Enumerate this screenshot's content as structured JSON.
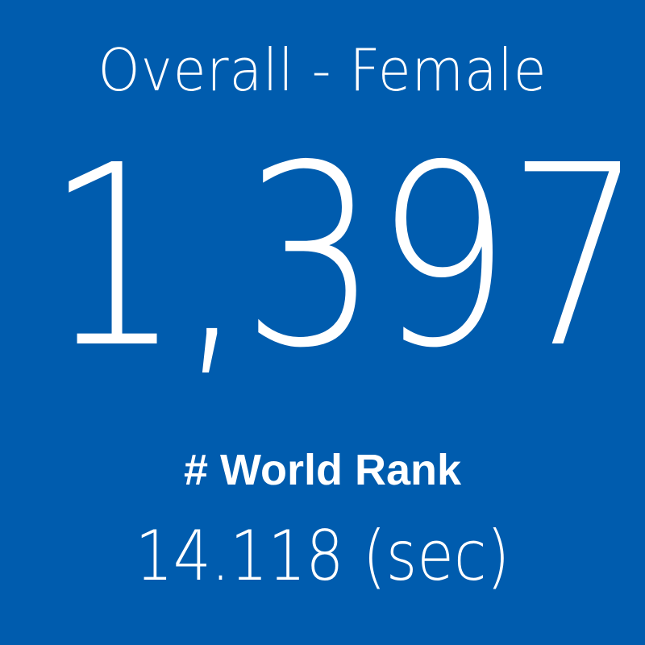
{
  "header": {
    "title": "Overall - Female"
  },
  "rank": {
    "value": "1,397",
    "label": "# World Rank"
  },
  "time": {
    "value": "14.118 (sec)"
  }
}
